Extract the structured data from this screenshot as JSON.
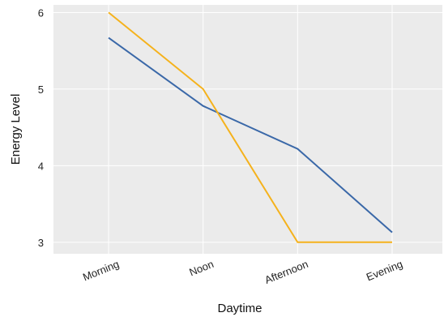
{
  "chart_data": {
    "type": "line",
    "title": "",
    "xlabel": "Daytime",
    "ylabel": "Energy Level",
    "categories": [
      "Morning",
      "Noon",
      "Afternoon",
      "Evening"
    ],
    "yticks": [
      3,
      4,
      5,
      6
    ],
    "ylim": [
      2.85,
      6.1
    ],
    "grid": true,
    "legend": "none",
    "background_color": "#ebebeb",
    "grid_color": "#ffffff",
    "series": [
      {
        "values": [
          5.67,
          4.78,
          4.22,
          3.13
        ],
        "color": "#3a68a8"
      },
      {
        "values": [
          6.0,
          5.0,
          3.0,
          3.0
        ],
        "color": "#f5b21c"
      }
    ]
  }
}
